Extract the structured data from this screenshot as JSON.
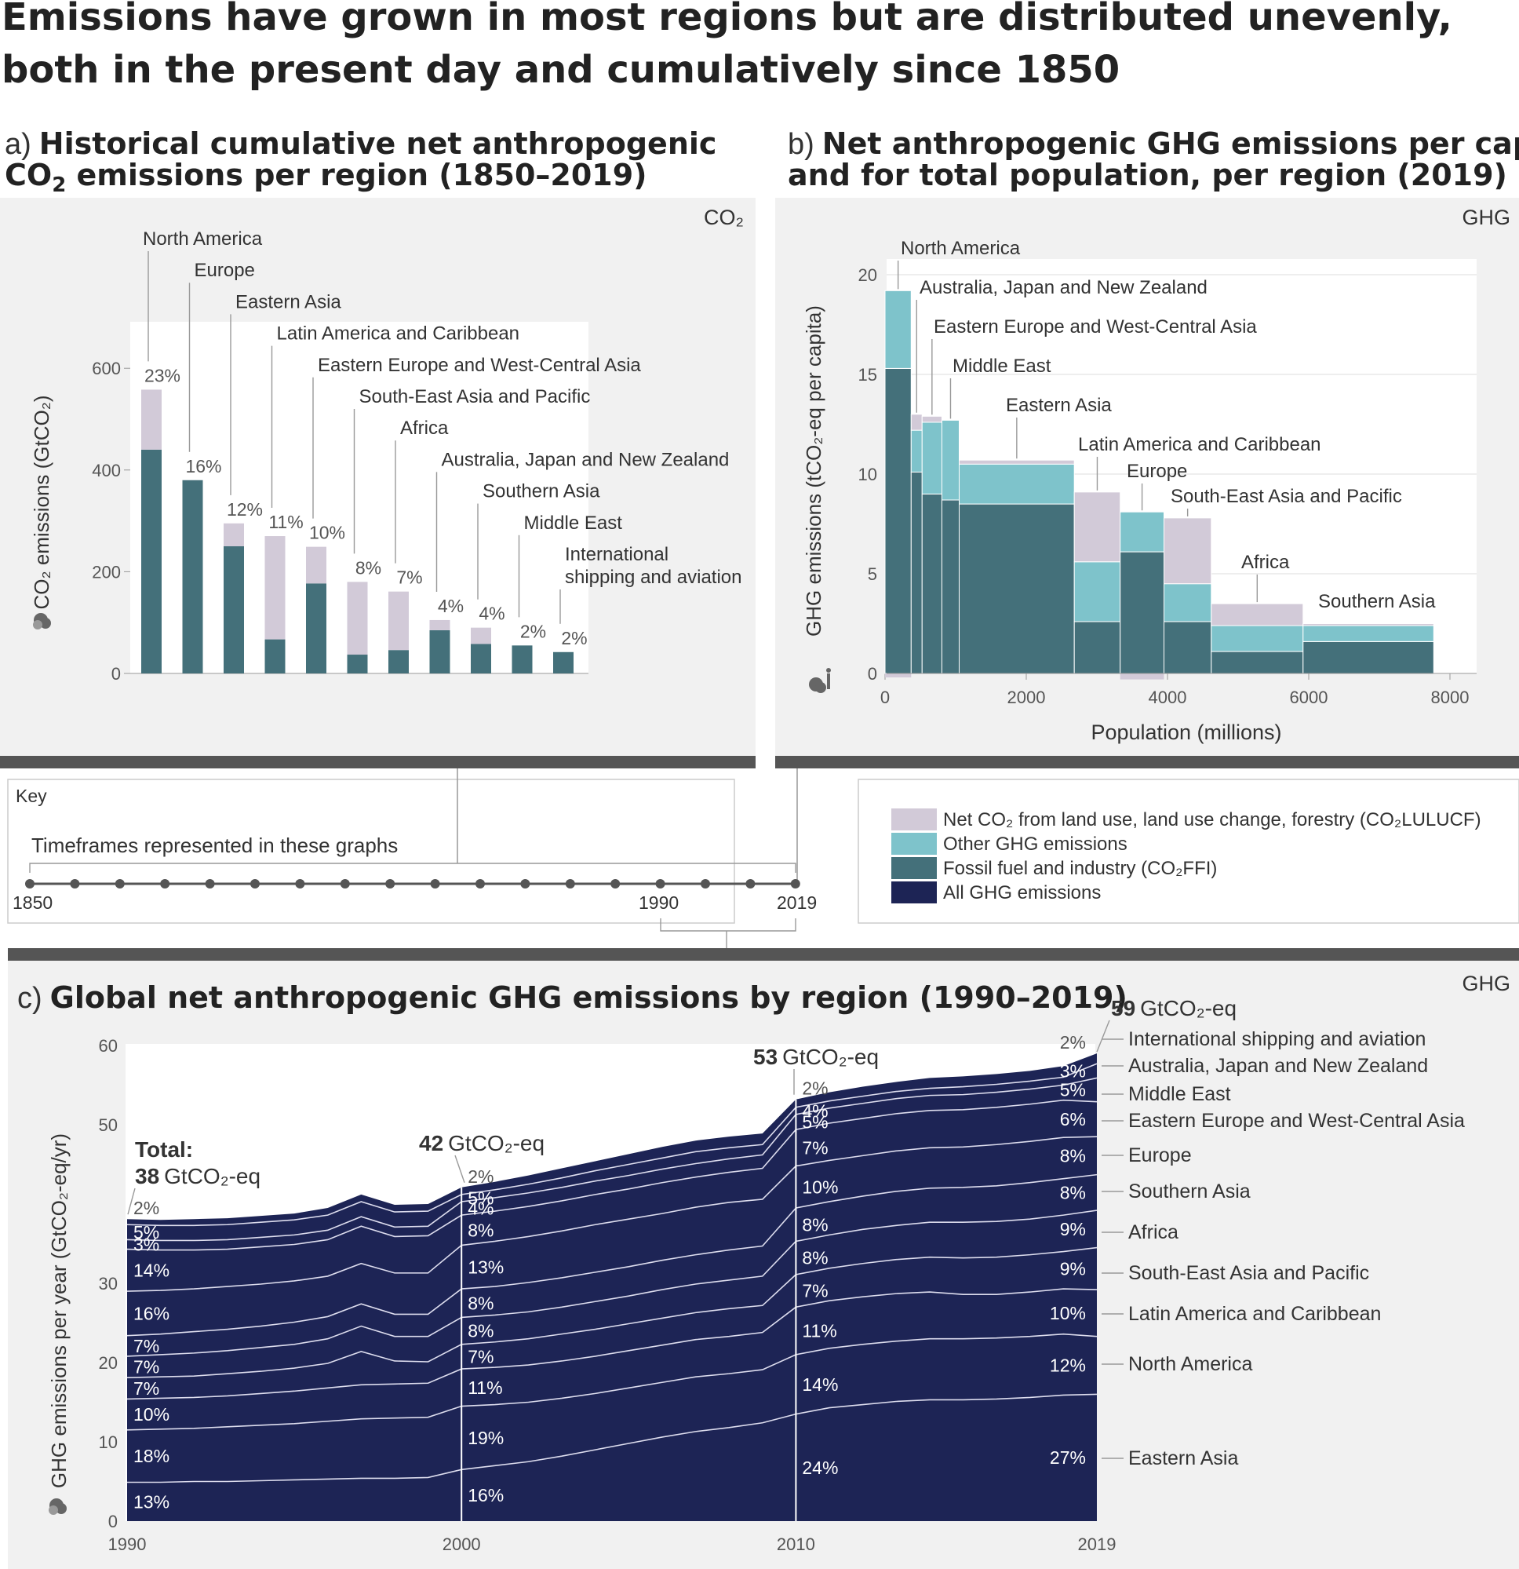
{
  "title_line1": "Emissions have grown in most regions but are distributed unevenly,",
  "title_line2": "both in the present day and cumulatively since 1850",
  "colors": {
    "lulucf": "#d2cad8",
    "other_ghg": "#7ec3cb",
    "ffi": "#44707a",
    "all_ghg": "#1d2455",
    "panel_bg": "#f1f1f1",
    "bar_dark": "#555555"
  },
  "panel_a": {
    "prefix": "a)",
    "title_line1": "Historical cumulative net anthropogenic",
    "title_line2_pre": "CO",
    "title_line2_sub": "2",
    "title_line2_post": " emissions per region (1850–2019)",
    "tag": "CO₂",
    "ylabel": "CO₂ emissions (GtCO₂)"
  },
  "panel_b": {
    "prefix": "b)",
    "title_line1": "Net anthropogenic GHG emissions per capita",
    "title_line2": "and for total population, per region (2019)",
    "tag": "GHG",
    "ylabel": "GHG emissions (tCO₂-eq per capita)",
    "xlabel": "Population (millions)"
  },
  "panel_c": {
    "prefix": "c)",
    "title": "Global net anthropogenic GHG emissions by region (1990–2019)",
    "tag": "GHG",
    "ylabel": "GHG emissions per year (GtCO₂-eq/yr)",
    "total_label": "Total:",
    "total_1990_num": "38",
    "total_2000_num": "42",
    "total_2010_num": "53",
    "total_2019_num": "59",
    "total_unit": "GtCO₂-eq"
  },
  "key": {
    "title": "Key",
    "timeframes": "Timeframes represented in these graphs",
    "year_1850": "1850",
    "year_1990": "1990",
    "year_2019": "2019",
    "legend": [
      {
        "label": "Net CO₂ from land use, land use change, forestry (CO₂LULUCF)",
        "color": "#d2cad8"
      },
      {
        "label": "Other GHG emissions",
        "color": "#7ec3cb"
      },
      {
        "label": "Fossil fuel and industry (CO₂FFI)",
        "color": "#44707a"
      },
      {
        "label": "All GHG emissions",
        "color": "#1d2455"
      }
    ]
  },
  "chart_data": [
    {
      "type": "bar",
      "id": "a",
      "ylim": [
        0,
        600
      ],
      "yticks": [
        0,
        200,
        400,
        600
      ],
      "categories": [
        "North America",
        "Europe",
        "Eastern Asia",
        "Latin America and Caribbean",
        "Eastern Europe and West-Central Asia",
        "South-East Asia and Pacific",
        "Africa",
        "Australia, Japan and New Zealand",
        "Southern Asia",
        "Middle East",
        "International shipping and aviation"
      ],
      "label_lines": [
        [
          "North America"
        ],
        [
          "Europe"
        ],
        [
          "Eastern Asia"
        ],
        [
          "Latin America and Caribbean"
        ],
        [
          "Eastern Europe and West-Central Asia"
        ],
        [
          "South-East Asia and Pacific"
        ],
        [
          "Africa"
        ],
        [
          "Australia, Japan and New Zealand"
        ],
        [
          "Southern Asia"
        ],
        [
          "Middle East"
        ],
        [
          "International",
          "shipping and aviation"
        ]
      ],
      "series": [
        {
          "name": "Fossil fuel and industry (CO₂FFI)",
          "values": [
            440,
            380,
            250,
            67,
            177,
            37,
            46,
            85,
            58,
            55,
            42
          ]
        },
        {
          "name": "Net CO₂ from land use, land use change, forestry (CO₂LULUCF)",
          "values": [
            118,
            0,
            45,
            203,
            72,
            143,
            115,
            20,
            32,
            0,
            0
          ]
        }
      ],
      "shares": [
        "23%",
        "16%",
        "12%",
        "11%",
        "10%",
        "8%",
        "7%",
        "4%",
        "4%",
        "2%",
        "2%"
      ]
    },
    {
      "type": "bar",
      "id": "b",
      "subtype": "variable-width",
      "xlim": [
        0,
        8000
      ],
      "ylim": [
        0,
        20
      ],
      "xticks": [
        0,
        2000,
        4000,
        6000,
        8000
      ],
      "yticks": [
        0,
        5,
        10,
        15,
        20
      ],
      "regions": [
        {
          "name": "North America",
          "population": 370,
          "ffi": 15.3,
          "other": 3.9,
          "lulucf": -0.2
        },
        {
          "name": "Australia, Japan and New Zealand",
          "population": 155,
          "ffi": 10.1,
          "other": 2.1,
          "lulucf": 0.8
        },
        {
          "name": "Eastern Europe and West-Central Asia",
          "population": 280,
          "ffi": 9.0,
          "other": 3.6,
          "lulucf": 0.3
        },
        {
          "name": "Middle East",
          "population": 245,
          "ffi": 8.7,
          "other": 4.0,
          "lulucf": 0
        },
        {
          "name": "Eastern Asia",
          "population": 1630,
          "ffi": 8.5,
          "other": 2.0,
          "lulucf": 0.2
        },
        {
          "name": "Latin America and Caribbean",
          "population": 650,
          "ffi": 2.6,
          "other": 3.0,
          "lulucf": 3.5
        },
        {
          "name": "Europe",
          "population": 620,
          "ffi": 6.1,
          "other": 2.0,
          "lulucf": -0.3
        },
        {
          "name": "South-East Asia and Pacific",
          "population": 670,
          "ffi": 2.6,
          "other": 1.9,
          "lulucf": 3.3
        },
        {
          "name": "Africa",
          "population": 1300,
          "ffi": 1.1,
          "other": 1.3,
          "lulucf": 1.1
        },
        {
          "name": "Southern Asia",
          "population": 1850,
          "ffi": 1.6,
          "other": 0.8,
          "lulucf": 0.1
        }
      ],
      "labels": [
        "North America",
        "Australia, Japan and New Zealand",
        "Eastern Europe and West-Central Asia",
        "Middle East",
        "Eastern Asia",
        "Latin America and Caribbean",
        "Europe",
        "South-East Asia and Pacific",
        "Africa",
        "Southern Asia"
      ]
    },
    {
      "type": "area",
      "id": "c",
      "stacked": true,
      "xlim": [
        1990,
        2019
      ],
      "ylim": [
        0,
        60
      ],
      "xticks": [
        1990,
        2000,
        2010,
        2019
      ],
      "yticks": [
        0,
        10,
        20,
        30,
        50,
        60
      ],
      "x": [
        1990,
        1991,
        1992,
        1993,
        1994,
        1995,
        1996,
        1997,
        1998,
        1999,
        2000,
        2001,
        2002,
        2003,
        2004,
        2005,
        2006,
        2007,
        2008,
        2009,
        2010,
        2011,
        2012,
        2013,
        2014,
        2015,
        2016,
        2017,
        2018,
        2019
      ],
      "series_order": [
        "Eastern Asia",
        "North America",
        "Latin America and Caribbean",
        "South-East Asia and Pacific",
        "Africa",
        "Southern Asia",
        "Europe",
        "Eastern Europe and West-Central Asia",
        "Middle East",
        "Australia, Japan and New Zealand",
        "International shipping and aviation"
      ],
      "boundaries": [
        [
          4.9,
          4.9,
          5.0,
          5.0,
          5.1,
          5.2,
          5.3,
          5.4,
          5.4,
          5.5,
          6.5,
          7.0,
          7.5,
          8.2,
          9.0,
          9.8,
          10.6,
          11.3,
          11.8,
          12.4,
          13.5,
          14.3,
          14.7,
          15.1,
          15.3,
          15.3,
          15.4,
          15.6,
          15.9,
          16.0
        ],
        [
          11.5,
          11.6,
          11.7,
          11.9,
          12.1,
          12.3,
          12.6,
          12.9,
          13.0,
          13.1,
          14.5,
          14.7,
          15.0,
          15.5,
          16.1,
          16.8,
          17.5,
          18.2,
          18.6,
          19.1,
          21.0,
          21.8,
          22.3,
          22.7,
          23.0,
          23.0,
          23.1,
          23.3,
          23.6,
          23.3
        ],
        [
          15.4,
          15.5,
          15.6,
          15.8,
          16.1,
          16.4,
          16.8,
          17.2,
          17.3,
          17.4,
          19.2,
          19.4,
          19.7,
          20.2,
          20.8,
          21.5,
          22.2,
          22.9,
          23.3,
          23.8,
          27.0,
          27.8,
          28.3,
          28.7,
          28.9,
          28.6,
          28.6,
          28.9,
          29.3,
          29.2
        ],
        [
          18.1,
          18.2,
          18.3,
          18.6,
          18.9,
          19.3,
          19.9,
          21.4,
          20.2,
          20.1,
          22.3,
          22.6,
          23.0,
          23.6,
          24.2,
          24.9,
          25.6,
          26.3,
          26.8,
          27.2,
          31.1,
          31.9,
          32.5,
          33.0,
          33.3,
          33.2,
          33.3,
          33.6,
          34.0,
          34.5
        ],
        [
          20.8,
          21.0,
          21.2,
          21.5,
          21.9,
          22.3,
          23.0,
          24.6,
          23.3,
          23.3,
          25.7,
          26.0,
          26.4,
          27.0,
          27.7,
          28.4,
          29.2,
          29.9,
          30.4,
          30.9,
          35.3,
          36.1,
          36.8,
          37.3,
          37.7,
          37.7,
          37.8,
          38.1,
          38.6,
          39.2
        ],
        [
          23.4,
          23.6,
          23.9,
          24.2,
          24.6,
          25.1,
          25.8,
          27.4,
          26.1,
          26.1,
          29.3,
          29.6,
          30.1,
          30.7,
          31.4,
          32.1,
          32.9,
          33.6,
          34.2,
          34.7,
          39.5,
          40.3,
          41.0,
          41.6,
          42.0,
          42.1,
          42.3,
          42.7,
          43.2,
          43.7
        ],
        [
          29.0,
          29.1,
          29.3,
          29.6,
          29.9,
          30.3,
          30.9,
          32.5,
          31.3,
          31.3,
          34.8,
          35.3,
          35.9,
          36.6,
          37.4,
          38.1,
          38.8,
          39.6,
          40.2,
          40.6,
          44.8,
          45.5,
          46.1,
          46.7,
          47.1,
          47.2,
          47.5,
          47.9,
          48.4,
          48.5
        ],
        [
          34.3,
          34.2,
          34.2,
          34.3,
          34.6,
          34.9,
          35.5,
          37.2,
          35.9,
          36.0,
          38.6,
          39.1,
          39.7,
          40.4,
          41.2,
          41.9,
          42.7,
          43.4,
          44.0,
          44.5,
          49.4,
          50.2,
          50.8,
          51.4,
          51.8,
          51.9,
          52.2,
          52.6,
          53.1,
          52.9
        ],
        [
          35.5,
          35.4,
          35.4,
          35.5,
          35.8,
          36.1,
          36.7,
          38.4,
          37.1,
          37.2,
          40.3,
          40.8,
          41.4,
          42.1,
          42.9,
          43.6,
          44.4,
          45.1,
          45.7,
          46.2,
          51.3,
          52.1,
          52.7,
          53.3,
          53.7,
          53.8,
          54.1,
          54.5,
          55.0,
          55.9
        ],
        [
          37.4,
          37.3,
          37.3,
          37.4,
          37.7,
          38.0,
          38.6,
          40.3,
          39.0,
          39.1,
          41.2,
          41.8,
          42.5,
          43.3,
          44.2,
          45.0,
          45.8,
          46.6,
          47.1,
          47.5,
          52.2,
          53.0,
          53.6,
          54.2,
          54.6,
          54.8,
          55.1,
          55.5,
          56.0,
          57.7
        ],
        [
          38.1,
          38.0,
          38.1,
          38.2,
          38.5,
          38.8,
          39.5,
          41.2,
          39.9,
          40.0,
          42.1,
          42.8,
          43.6,
          44.5,
          45.4,
          46.3,
          47.2,
          48.0,
          48.5,
          48.9,
          53.2,
          54.1,
          54.8,
          55.4,
          55.9,
          56.1,
          56.4,
          56.8,
          57.4,
          59.0
        ]
      ],
      "shares": {
        "1990": [
          "13%",
          "18%",
          "10%",
          "7%",
          "7%",
          "7%",
          "16%",
          "14%",
          "3%",
          "5%",
          "2%"
        ],
        "2000": [
          "16%",
          "19%",
          "11%",
          "7%",
          "8%",
          "8%",
          "13%",
          "8%",
          "4%",
          "5%",
          "2%"
        ],
        "2010": [
          "24%",
          "14%",
          "11%",
          "7%",
          "8%",
          "8%",
          "10%",
          "7%",
          "5%",
          "4%",
          "2%"
        ],
        "2019": [
          "27%",
          "12%",
          "10%",
          "9%",
          "9%",
          "8%",
          "8%",
          "6%",
          "5%",
          "3%",
          "2%"
        ]
      },
      "legend_labels": [
        "Eastern Asia",
        "North America",
        "Latin America and Caribbean",
        "South-East Asia and Pacific",
        "Africa",
        "Southern Asia",
        "Europe",
        "Eastern Europe and West-Central Asia",
        "Middle East",
        "Australia, Japan and New Zealand",
        "International shipping and aviation"
      ]
    }
  ]
}
